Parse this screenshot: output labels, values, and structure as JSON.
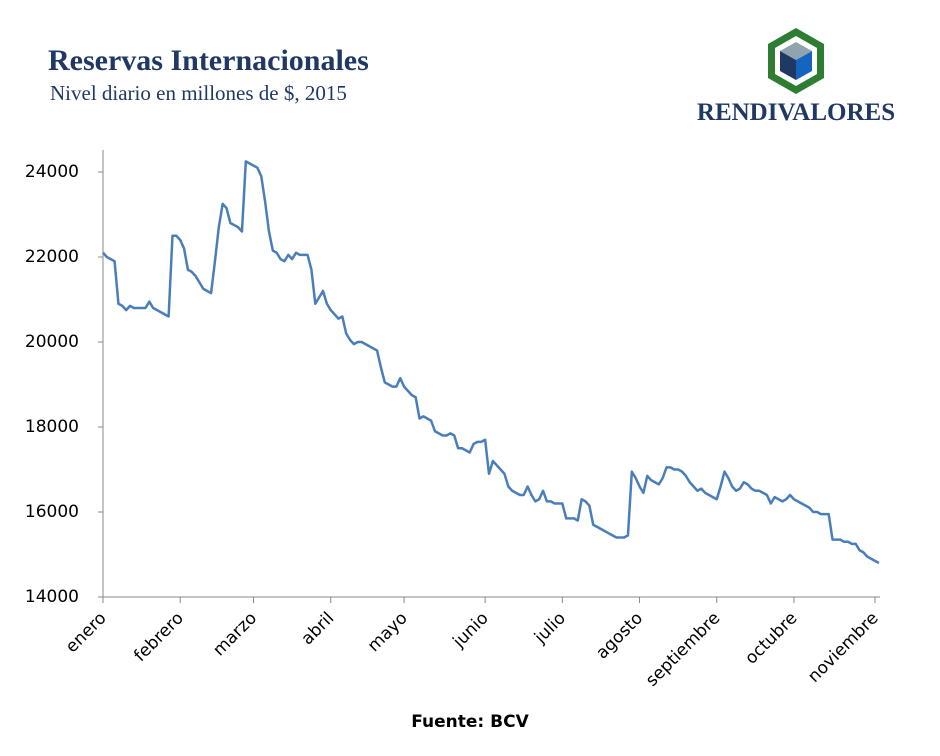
{
  "chart_data": {
    "type": "line",
    "title": "Reservas Internacionales",
    "subtitle": "Nivel diario en millones de $, 2015",
    "brand": "RENDIVALORES",
    "source": "Fuente: BCV",
    "categories": [
      "enero",
      null,
      null,
      null,
      null,
      null,
      null,
      null,
      null,
      null,
      null,
      null,
      null,
      null,
      null,
      null,
      null,
      null,
      null,
      null,
      "febrero",
      null,
      null,
      null,
      null,
      null,
      null,
      null,
      null,
      null,
      null,
      null,
      null,
      null,
      null,
      null,
      null,
      null,
      null,
      "marzo",
      null,
      null,
      null,
      null,
      null,
      null,
      null,
      null,
      null,
      null,
      null,
      null,
      null,
      null,
      null,
      null,
      null,
      null,
      null,
      "abril",
      null,
      null,
      null,
      null,
      null,
      null,
      null,
      null,
      null,
      null,
      null,
      null,
      null,
      null,
      null,
      null,
      null,
      null,
      "mayo",
      null,
      null,
      null,
      null,
      null,
      null,
      null,
      null,
      null,
      null,
      null,
      null,
      null,
      null,
      null,
      null,
      null,
      null,
      null,
      null,
      "junio",
      null,
      null,
      null,
      null,
      null,
      null,
      null,
      null,
      null,
      null,
      null,
      null,
      null,
      null,
      null,
      null,
      null,
      null,
      null,
      "julio",
      null,
      null,
      null,
      null,
      null,
      null,
      null,
      null,
      null,
      null,
      null,
      null,
      null,
      null,
      null,
      null,
      null,
      null,
      null,
      "agosto",
      null,
      null,
      null,
      null,
      null,
      null,
      null,
      null,
      null,
      null,
      null,
      null,
      null,
      null,
      null,
      null,
      null,
      null,
      null,
      "septiembre",
      null,
      null,
      null,
      null,
      null,
      null,
      null,
      null,
      null,
      null,
      null,
      null,
      null,
      null,
      null,
      null,
      null,
      null,
      null,
      "octubre",
      null,
      null,
      null,
      null,
      null,
      null,
      null,
      null,
      null,
      null,
      null,
      null,
      null,
      null,
      null,
      null,
      null,
      null,
      null,
      null,
      "noviembre",
      null
    ],
    "series": [
      {
        "name": "Reservas",
        "color": "#4a7ebb",
        "values": [
          22100,
          22000,
          21950,
          21900,
          20900,
          20850,
          20750,
          20850,
          20800,
          20800,
          20800,
          20800,
          20950,
          20800,
          20750,
          20700,
          20650,
          20600,
          22500,
          22500,
          22400,
          22200,
          21700,
          21650,
          21550,
          21400,
          21250,
          21200,
          21150,
          21900,
          22700,
          23250,
          23150,
          22800,
          22750,
          22700,
          22600,
          24250,
          24200,
          24150,
          24100,
          23900,
          23300,
          22600,
          22150,
          22100,
          21950,
          21900,
          22050,
          21950,
          22100,
          22050,
          22050,
          22050,
          21700,
          20900,
          21050,
          21200,
          20900,
          20750,
          20650,
          20550,
          20600,
          20200,
          20050,
          19950,
          20000,
          20000,
          19950,
          19900,
          19850,
          19800,
          19400,
          19050,
          19000,
          18950,
          18950,
          19150,
          18950,
          18850,
          18750,
          18700,
          18200,
          18250,
          18200,
          18150,
          17900,
          17850,
          17800,
          17800,
          17850,
          17800,
          17500,
          17500,
          17450,
          17400,
          17600,
          17650,
          17650,
          17700,
          16900,
          17200,
          17100,
          17000,
          16900,
          16600,
          16500,
          16450,
          16400,
          16400,
          16600,
          16400,
          16250,
          16300,
          16500,
          16250,
          16250,
          16200,
          16200,
          16200,
          15850,
          15850,
          15850,
          15800,
          16300,
          16250,
          16150,
          15700,
          15650,
          15600,
          15550,
          15500,
          15450,
          15400,
          15400,
          15400,
          15450,
          16950,
          16800,
          16600,
          16450,
          16850,
          16750,
          16700,
          16650,
          16800,
          17050,
          17050,
          17000,
          17000,
          16950,
          16850,
          16700,
          16600,
          16500,
          16550,
          16450,
          16400,
          16350,
          16300,
          16600,
          16950,
          16800,
          16600,
          16500,
          16550,
          16700,
          16650,
          16550,
          16500,
          16500,
          16450,
          16400,
          16200,
          16350,
          16300,
          16250,
          16300,
          16400,
          16300,
          16250,
          16200,
          16150,
          16100,
          16000,
          16000,
          15950,
          15950,
          15950,
          15350,
          15350,
          15350,
          15300,
          15300,
          15250,
          15250,
          15100,
          15050,
          14950,
          14900,
          14850,
          14800
        ]
      }
    ],
    "ylim": [
      14000,
      24500
    ],
    "yticks": [
      14000,
      16000,
      18000,
      20000,
      22000,
      24000
    ],
    "grid": false
  }
}
